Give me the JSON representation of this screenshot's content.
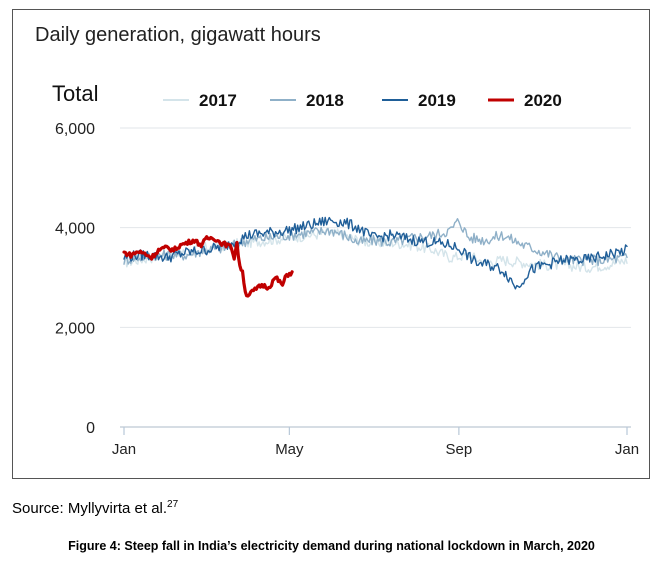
{
  "chart_data": {
    "type": "line",
    "title": "Daily generation, gigawatt hours",
    "panel_label": "Total",
    "x_ticks": [
      "Jan",
      "May",
      "Sep",
      "Jan"
    ],
    "y_ticks": [
      "6,000",
      "4,000",
      "2,000",
      "0"
    ],
    "ylim": [
      0,
      6000
    ],
    "xlim_days": [
      0,
      365
    ],
    "grid": true,
    "legend_position": "top",
    "series": [
      {
        "name": "2017",
        "color": "#d4e4ea",
        "width": 1.4,
        "points": [
          [
            0,
            3300
          ],
          [
            10,
            3350
          ],
          [
            20,
            3400
          ],
          [
            31,
            3450
          ],
          [
            45,
            3500
          ],
          [
            59,
            3600
          ],
          [
            75,
            3650
          ],
          [
            90,
            3700
          ],
          [
            105,
            3750
          ],
          [
            120,
            3800
          ],
          [
            135,
            3850
          ],
          [
            150,
            3900
          ],
          [
            160,
            3850
          ],
          [
            170,
            3750
          ],
          [
            180,
            3700
          ],
          [
            195,
            3700
          ],
          [
            210,
            3650
          ],
          [
            225,
            3550
          ],
          [
            237,
            3400
          ],
          [
            250,
            3450
          ],
          [
            262,
            3300
          ],
          [
            275,
            3350
          ],
          [
            290,
            3300
          ],
          [
            305,
            3250
          ],
          [
            320,
            3250
          ],
          [
            335,
            3200
          ],
          [
            350,
            3250
          ],
          [
            365,
            3350
          ]
        ]
      },
      {
        "name": "2018",
        "color": "#8fb0c8",
        "width": 1.4,
        "points": [
          [
            0,
            3350
          ],
          [
            10,
            3400
          ],
          [
            20,
            3450
          ],
          [
            31,
            3450
          ],
          [
            45,
            3450
          ],
          [
            59,
            3550
          ],
          [
            75,
            3600
          ],
          [
            90,
            3750
          ],
          [
            105,
            3800
          ],
          [
            120,
            3850
          ],
          [
            135,
            3900
          ],
          [
            150,
            3950
          ],
          [
            160,
            3850
          ],
          [
            170,
            3700
          ],
          [
            180,
            3750
          ],
          [
            195,
            3700
          ],
          [
            210,
            3800
          ],
          [
            225,
            3850
          ],
          [
            237,
            3950
          ],
          [
            243,
            4150
          ],
          [
            250,
            3800
          ],
          [
            262,
            3750
          ],
          [
            275,
            3850
          ],
          [
            290,
            3650
          ],
          [
            305,
            3500
          ],
          [
            320,
            3350
          ],
          [
            335,
            3350
          ],
          [
            350,
            3350
          ],
          [
            365,
            3400
          ]
        ]
      },
      {
        "name": "2019",
        "color": "#1f5e98",
        "width": 1.4,
        "points": [
          [
            0,
            3400
          ],
          [
            10,
            3450
          ],
          [
            20,
            3450
          ],
          [
            31,
            3400
          ],
          [
            45,
            3500
          ],
          [
            59,
            3550
          ],
          [
            75,
            3650
          ],
          [
            90,
            3850
          ],
          [
            105,
            3900
          ],
          [
            120,
            3950
          ],
          [
            135,
            4050
          ],
          [
            150,
            4150
          ],
          [
            160,
            4100
          ],
          [
            170,
            4000
          ],
          [
            180,
            3800
          ],
          [
            195,
            3850
          ],
          [
            210,
            3750
          ],
          [
            225,
            3700
          ],
          [
            237,
            3650
          ],
          [
            245,
            3550
          ],
          [
            255,
            3300
          ],
          [
            265,
            3250
          ],
          [
            275,
            3150
          ],
          [
            285,
            2800
          ],
          [
            295,
            3150
          ],
          [
            305,
            3250
          ],
          [
            320,
            3350
          ],
          [
            335,
            3350
          ],
          [
            350,
            3450
          ],
          [
            365,
            3550
          ]
        ]
      },
      {
        "name": "2020",
        "color": "#c00000",
        "width": 3.2,
        "points": [
          [
            0,
            3500
          ],
          [
            5,
            3450
          ],
          [
            10,
            3520
          ],
          [
            15,
            3480
          ],
          [
            20,
            3400
          ],
          [
            25,
            3550
          ],
          [
            31,
            3600
          ],
          [
            36,
            3550
          ],
          [
            41,
            3650
          ],
          [
            46,
            3700
          ],
          [
            51,
            3750
          ],
          [
            56,
            3650
          ],
          [
            60,
            3780
          ],
          [
            65,
            3800
          ],
          [
            70,
            3700
          ],
          [
            75,
            3650
          ],
          [
            78,
            3600
          ],
          [
            80,
            3400
          ],
          [
            82,
            3700
          ],
          [
            84,
            3200
          ],
          [
            86,
            3150
          ],
          [
            88,
            2700
          ],
          [
            90,
            2650
          ],
          [
            95,
            2750
          ],
          [
            100,
            2850
          ],
          [
            105,
            2800
          ],
          [
            110,
            3000
          ],
          [
            115,
            2850
          ],
          [
            118,
            3050
          ],
          [
            122,
            3100
          ]
        ]
      }
    ]
  },
  "footer": {
    "source_label": "Source:  Myllyvirta et al.",
    "source_ref": "27",
    "caption": "Figure 4: Steep fall in India’s electricity demand during national lockdown in March, 2020"
  }
}
